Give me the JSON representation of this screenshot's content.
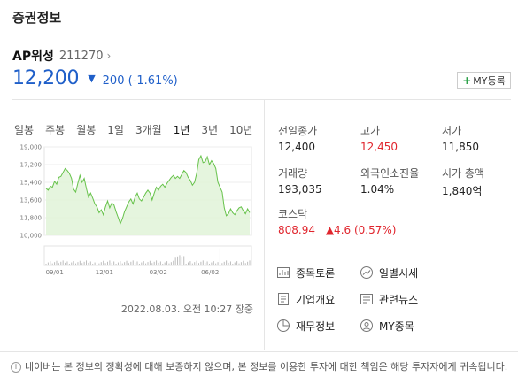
{
  "header": {
    "title": "증권정보"
  },
  "stock": {
    "name": "AP위성",
    "code": "211270",
    "price": "12,200",
    "change": "200",
    "change_pct": "(-1.61%)",
    "my_label": "MY등록"
  },
  "period_tabs": [
    "일봉",
    "주봉",
    "월봉",
    "1일",
    "3개월",
    "1년",
    "3년",
    "10년"
  ],
  "active_tab": "1년",
  "chart_data": {
    "type": "area",
    "y_ticks": [
      "19,000",
      "17,200",
      "15,400",
      "13,600",
      "11,800",
      "10,000"
    ],
    "ylim": [
      10000,
      19000
    ],
    "x_ticks": [
      "09/01",
      "12/01",
      "03/02",
      "06/02"
    ],
    "values": [
      14800,
      14600,
      15000,
      14900,
      15500,
      15200,
      15900,
      16000,
      16400,
      16800,
      16600,
      16300,
      15800,
      14700,
      14400,
      15300,
      16100,
      15400,
      15800,
      14800,
      13900,
      14300,
      13800,
      13200,
      12900,
      12300,
      12600,
      12100,
      12900,
      13500,
      12800,
      13300,
      13100,
      12400,
      11800,
      11200,
      11700,
      12400,
      12900,
      13400,
      13700,
      13200,
      13900,
      14300,
      13700,
      13500,
      13900,
      14300,
      14600,
      14300,
      13600,
      14300,
      14900,
      14600,
      15000,
      15200,
      14900,
      15300,
      15600,
      15900,
      16100,
      15800,
      16000,
      15800,
      16200,
      16600,
      16400,
      15900,
      15600,
      15100,
      15400,
      16300,
      17700,
      18100,
      17400,
      17500,
      18000,
      17200,
      17600,
      17300,
      16800,
      15400,
      14900,
      14400,
      12800,
      12000,
      12200,
      12700,
      12300,
      12100,
      12500,
      12800,
      12900,
      12500,
      12200,
      12700,
      12300
    ]
  },
  "stats": [
    {
      "label": "전일종가",
      "value": "12,400",
      "color": "#222222"
    },
    {
      "label": "고가",
      "value": "12,450",
      "color": "#e0252d"
    },
    {
      "label": "저가",
      "value": "11,850",
      "color": "#222222"
    },
    {
      "label": "거래량",
      "value": "193,035",
      "color": "#222222"
    },
    {
      "label": "외국인소진율",
      "value": "1.04%",
      "color": "#222222"
    },
    {
      "label": "시가 총액",
      "value": "1,840억",
      "color": "#222222"
    }
  ],
  "kosdaq": {
    "label": "코스닥",
    "value": "808.94",
    "change": "▲4.6 (0.57%)"
  },
  "links": [
    {
      "label": "종목토론",
      "icon": "chart-board-icon"
    },
    {
      "label": "일별시세",
      "icon": "trend-circle-icon"
    },
    {
      "label": "기업개요",
      "icon": "document-icon"
    },
    {
      "label": "관련뉴스",
      "icon": "news-icon"
    },
    {
      "label": "재무정보",
      "icon": "pie-chart-icon"
    },
    {
      "label": "MY종목",
      "icon": "user-icon"
    }
  ],
  "timestamp": "2022.08.03. 오전 10:27 장중",
  "footer": {
    "notice": "네이버는 본 정보의 정확성에 대해 보증하지 않으며, 본 정보를 이용한 투자에 대한 책임은 해당 투자자에게 귀속됩니다."
  },
  "colors": {
    "down": "#1f5fc9",
    "up": "#e0252d",
    "chart_line": "#66c24a",
    "chart_fill": "#dff2d6"
  }
}
